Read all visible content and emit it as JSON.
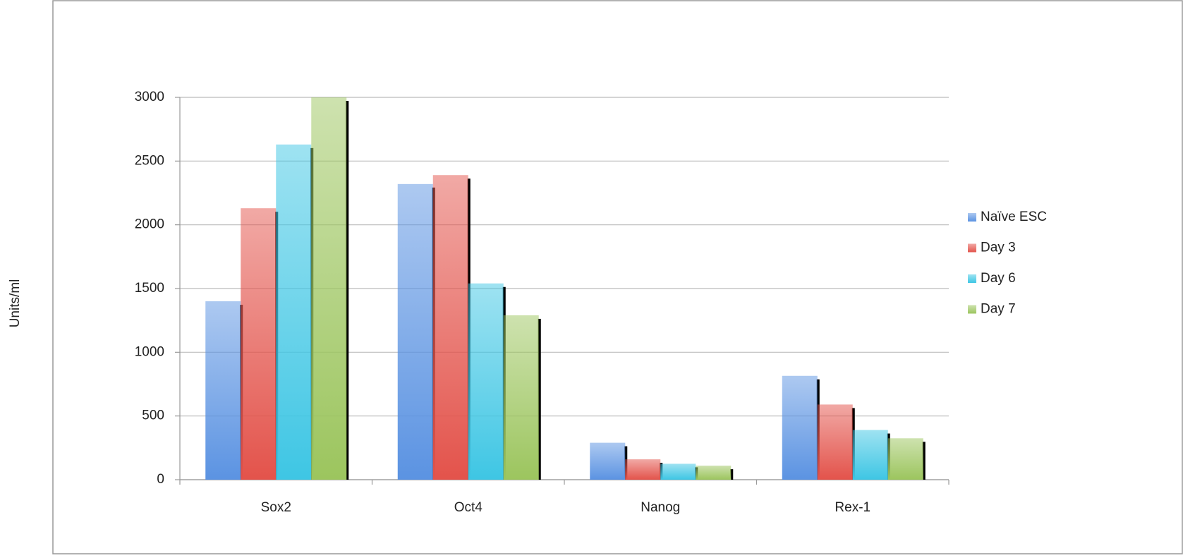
{
  "chart_data": {
    "type": "bar",
    "y_label": "Units/ml",
    "categories": [
      "Sox2",
      "Oct4",
      "Nanog",
      "Rex-1"
    ],
    "series": [
      {
        "name": "Naïve ESC",
        "color": "#5b93e2",
        "values": [
          1400,
          2320,
          290,
          815
        ]
      },
      {
        "name": "Day 3",
        "color": "#e3534b",
        "values": [
          2130,
          2390,
          160,
          590
        ]
      },
      {
        "name": "Day 6",
        "color": "#3ec6e4",
        "values": [
          2630,
          1540,
          125,
          390
        ]
      },
      {
        "name": "Day 7",
        "color": "#9cc55e",
        "values": [
          3000,
          1290,
          110,
          325
        ]
      }
    ],
    "ylim": [
      0,
      3000
    ],
    "yticks": [
      0,
      500,
      1000,
      1500,
      2000,
      2500,
      3000
    ],
    "grid": true,
    "legend": "right"
  }
}
